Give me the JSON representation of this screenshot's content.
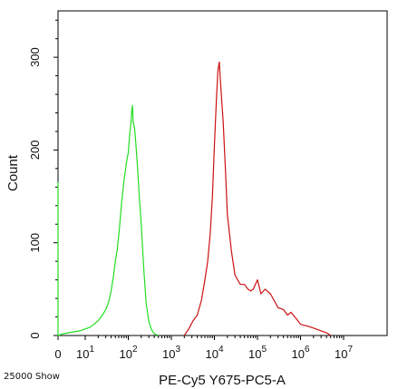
{
  "chart_data": {
    "type": "line",
    "xlabel": "PE-Cy5 Y675-PC5-A",
    "ylabel": "Count",
    "footnote": "25000 Show",
    "x_scale": "biexponential",
    "xlim": [
      0,
      10000000
    ],
    "ylim": [
      0,
      350
    ],
    "x_ticks": [
      {
        "value": 0,
        "base": "0",
        "exp": ""
      },
      {
        "value": 10,
        "base": "10",
        "exp": "1"
      },
      {
        "value": 100,
        "base": "10",
        "exp": "2"
      },
      {
        "value": 1000,
        "base": "10",
        "exp": "3"
      },
      {
        "value": 10000,
        "base": "10",
        "exp": "4"
      },
      {
        "value": 100000,
        "base": "10",
        "exp": "5"
      },
      {
        "value": 1000000,
        "base": "10",
        "exp": "6"
      },
      {
        "value": 10000000,
        "base": "10",
        "exp": "7"
      }
    ],
    "y_ticks": [
      0,
      100,
      200,
      300
    ],
    "grid": false,
    "series": [
      {
        "color": "#22dd22",
        "points": [
          [
            0,
            0
          ],
          [
            0,
            165
          ],
          [
            0,
            0
          ],
          [
            2,
            2
          ],
          [
            4,
            3
          ],
          [
            6,
            4
          ],
          [
            8,
            5
          ],
          [
            10,
            7
          ],
          [
            13,
            9
          ],
          [
            16,
            12
          ],
          [
            20,
            16
          ],
          [
            25,
            22
          ],
          [
            30,
            28
          ],
          [
            35,
            36
          ],
          [
            40,
            48
          ],
          [
            45,
            63
          ],
          [
            50,
            80
          ],
          [
            55,
            92
          ],
          [
            60,
            108
          ],
          [
            65,
            125
          ],
          [
            70,
            143
          ],
          [
            75,
            156
          ],
          [
            80,
            168
          ],
          [
            85,
            176
          ],
          [
            90,
            185
          ],
          [
            95,
            192
          ],
          [
            100,
            197
          ],
          [
            108,
            218
          ],
          [
            115,
            228
          ],
          [
            120,
            242
          ],
          [
            125,
            248
          ],
          [
            130,
            230
          ],
          [
            140,
            224
          ],
          [
            150,
            206
          ],
          [
            165,
            180
          ],
          [
            180,
            150
          ],
          [
            200,
            120
          ],
          [
            230,
            70
          ],
          [
            260,
            35
          ],
          [
            300,
            15
          ],
          [
            350,
            6
          ],
          [
            400,
            2
          ],
          [
            500,
            0
          ]
        ]
      },
      {
        "color": "#cc1111",
        "points": [
          [
            2000,
            0
          ],
          [
            2600,
            8
          ],
          [
            3200,
            16
          ],
          [
            4000,
            22
          ],
          [
            5000,
            38
          ],
          [
            6000,
            60
          ],
          [
            7000,
            80
          ],
          [
            8000,
            110
          ],
          [
            9000,
            150
          ],
          [
            10000,
            205
          ],
          [
            11000,
            250
          ],
          [
            12000,
            285
          ],
          [
            13000,
            295
          ],
          [
            14000,
            270
          ],
          [
            16000,
            230
          ],
          [
            18000,
            180
          ],
          [
            20000,
            130
          ],
          [
            25000,
            90
          ],
          [
            30000,
            65
          ],
          [
            40000,
            55
          ],
          [
            50000,
            55
          ],
          [
            60000,
            50
          ],
          [
            70000,
            48
          ],
          [
            80000,
            50
          ],
          [
            100000,
            60
          ],
          [
            120000,
            45
          ],
          [
            150000,
            50
          ],
          [
            200000,
            45
          ],
          [
            300000,
            30
          ],
          [
            400000,
            28
          ],
          [
            500000,
            22
          ],
          [
            600000,
            25
          ],
          [
            800000,
            18
          ],
          [
            1000000,
            12
          ],
          [
            1500000,
            10
          ],
          [
            2000000,
            8
          ],
          [
            3000000,
            5
          ],
          [
            4000000,
            3
          ],
          [
            5000000,
            0
          ]
        ]
      }
    ]
  }
}
